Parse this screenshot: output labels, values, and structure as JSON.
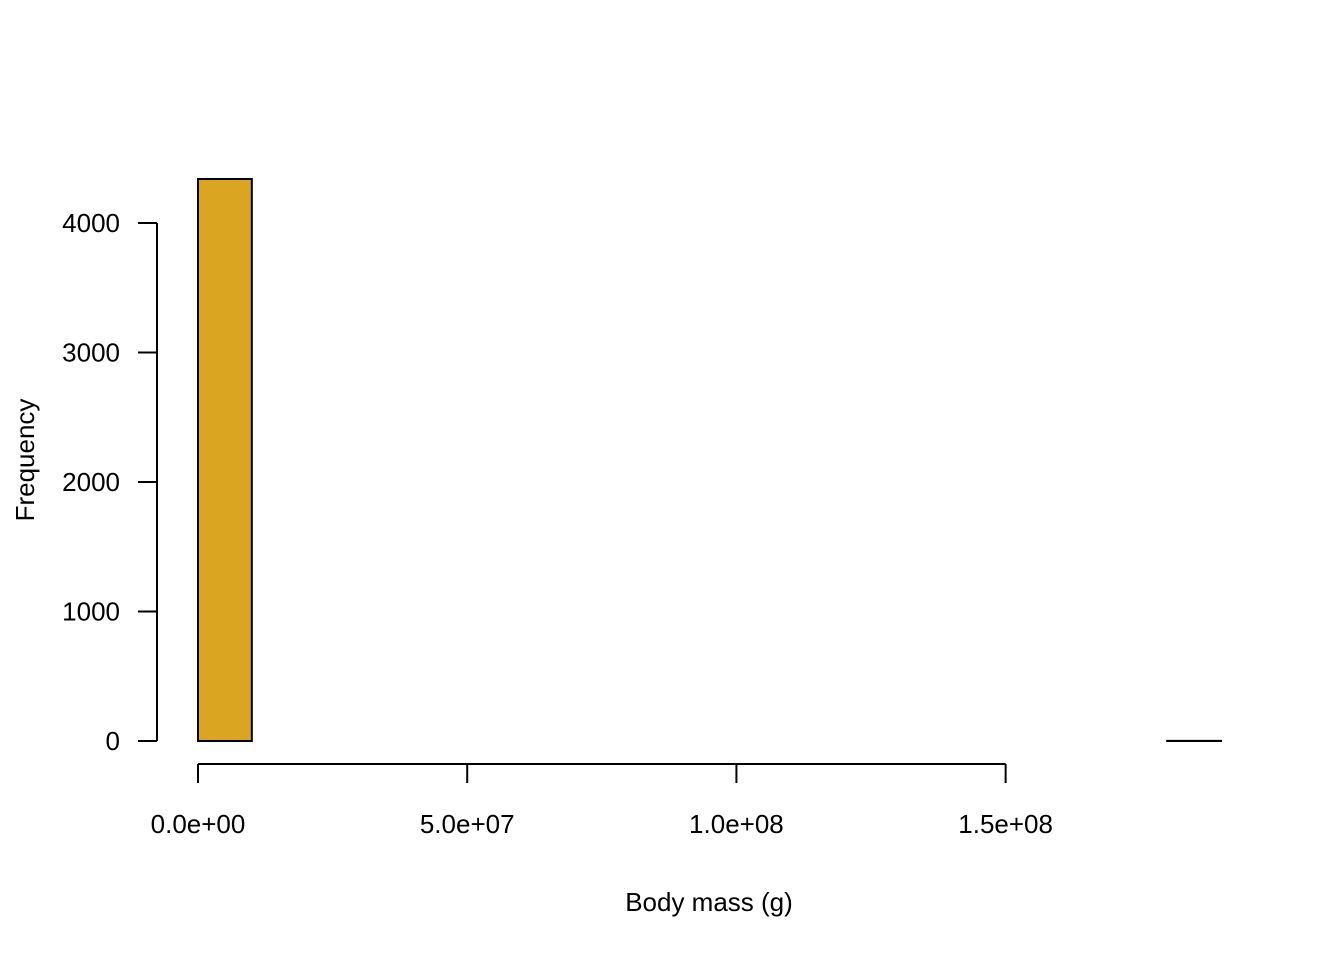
{
  "chart_data": {
    "type": "bar",
    "title": "",
    "xlabel": "Body mass (g)",
    "ylabel": "Frequency",
    "bin_width": 10000000,
    "bins": [
      {
        "start": 0,
        "end": 10000000,
        "count": 4340
      },
      {
        "start": 10000000,
        "end": 20000000,
        "count": 0
      },
      {
        "start": 20000000,
        "end": 30000000,
        "count": 0
      },
      {
        "start": 30000000,
        "end": 40000000,
        "count": 0
      },
      {
        "start": 40000000,
        "end": 50000000,
        "count": 0
      },
      {
        "start": 50000000,
        "end": 60000000,
        "count": 0
      },
      {
        "start": 60000000,
        "end": 70000000,
        "count": 0
      },
      {
        "start": 70000000,
        "end": 80000000,
        "count": 0
      },
      {
        "start": 80000000,
        "end": 90000000,
        "count": 0
      },
      {
        "start": 90000000,
        "end": 100000000,
        "count": 0
      },
      {
        "start": 100000000,
        "end": 110000000,
        "count": 0
      },
      {
        "start": 110000000,
        "end": 120000000,
        "count": 0
      },
      {
        "start": 120000000,
        "end": 130000000,
        "count": 0
      },
      {
        "start": 130000000,
        "end": 140000000,
        "count": 0
      },
      {
        "start": 140000000,
        "end": 150000000,
        "count": 0
      },
      {
        "start": 150000000,
        "end": 160000000,
        "count": 0
      },
      {
        "start": 160000000,
        "end": 170000000,
        "count": 0
      },
      {
        "start": 170000000,
        "end": 180000000,
        "count": 0
      },
      {
        "start": 180000000,
        "end": 190000000,
        "count": 1
      }
    ],
    "xlim": [
      0,
      190000000
    ],
    "ylim": [
      0,
      4340
    ],
    "x_ticks": [
      {
        "value": 0,
        "label": "0.0e+00"
      },
      {
        "value": 50000000,
        "label": "5.0e+07"
      },
      {
        "value": 100000000,
        "label": "1.0e+08"
      },
      {
        "value": 150000000,
        "label": "1.5e+08"
      }
    ],
    "y_ticks": [
      {
        "value": 0,
        "label": "0"
      },
      {
        "value": 1000,
        "label": "1000"
      },
      {
        "value": 2000,
        "label": "2000"
      },
      {
        "value": 3000,
        "label": "3000"
      },
      {
        "value": 4000,
        "label": "4000"
      }
    ],
    "bar_color": "#DAA520",
    "grid": false
  }
}
